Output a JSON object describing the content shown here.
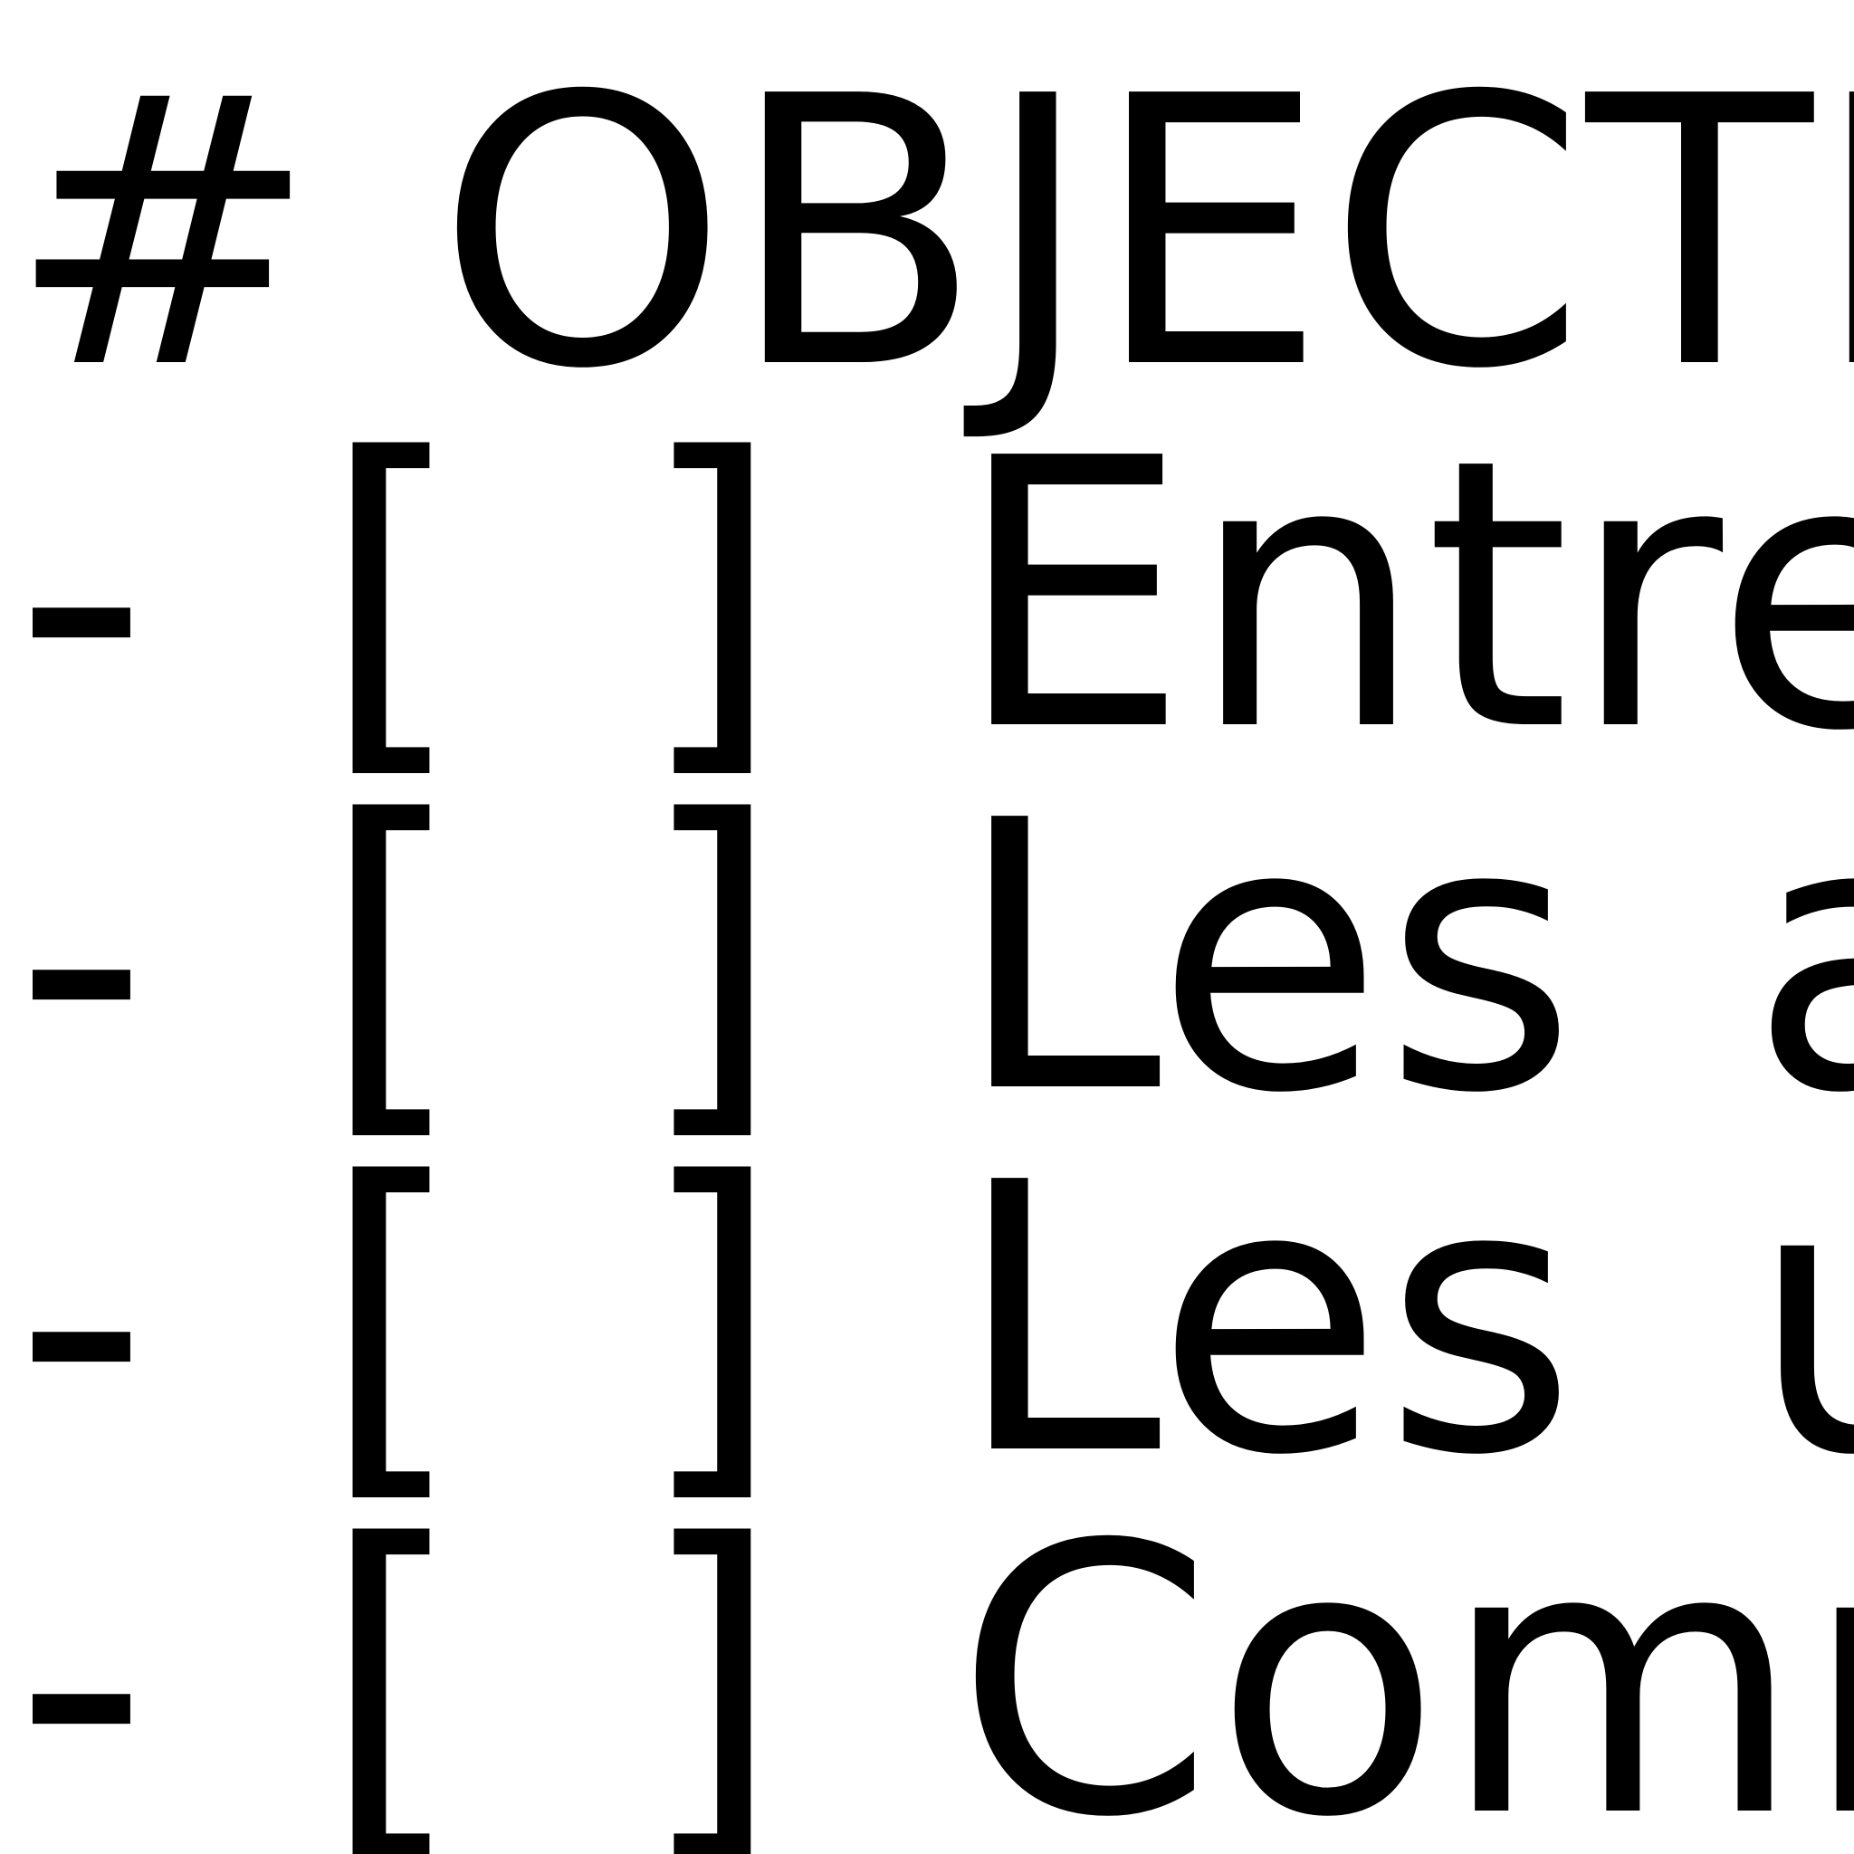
{
  "heading": "# OBJECTI",
  "items": [
    "- [ ] Entrep",
    "- [ ] Les ap",
    "- [ ] Les uti",
    "- [ ] Comm"
  ]
}
